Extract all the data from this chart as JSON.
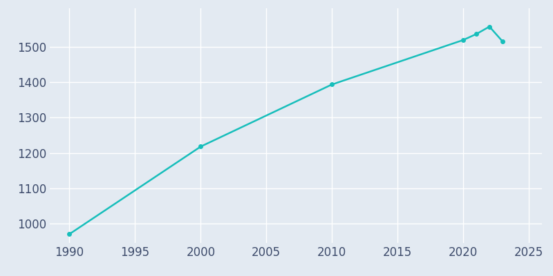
{
  "years": [
    1990,
    2000,
    2010,
    2020,
    2021,
    2022,
    2023
  ],
  "population": [
    970,
    1218,
    1394,
    1520,
    1537,
    1558,
    1516
  ],
  "line_color": "#17BEBB",
  "marker_color": "#17BEBB",
  "bg_color": "#E3EAF2",
  "plot_bg_color": "#E3EAF2",
  "grid_color": "#FFFFFF",
  "tick_label_color": "#3D4B6B",
  "xlim": [
    1988.5,
    2026
  ],
  "ylim": [
    945,
    1610
  ],
  "xticks": [
    1990,
    1995,
    2000,
    2005,
    2010,
    2015,
    2020,
    2025
  ],
  "yticks": [
    1000,
    1100,
    1200,
    1300,
    1400,
    1500
  ],
  "linewidth": 1.8,
  "markersize": 4,
  "tick_fontsize": 12
}
